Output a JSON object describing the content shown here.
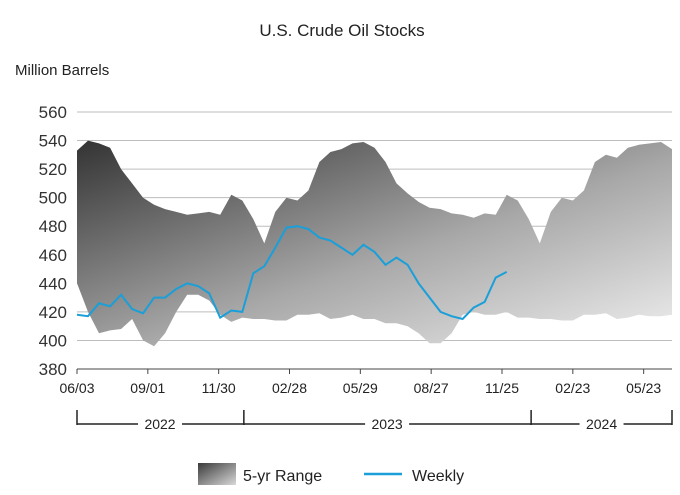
{
  "chart_data": {
    "type": "area",
    "title": "U.S. Crude Oil Stocks",
    "ylabel": "Million Barrels",
    "ylim": [
      380,
      560
    ],
    "yticks": [
      380,
      400,
      420,
      440,
      460,
      480,
      500,
      520,
      540,
      560
    ],
    "grid": true,
    "legend": "bottom",
    "x_start": "2022-06-03",
    "x_end": "2024-06-28",
    "xtick_labels": [
      {
        "label": "06/03",
        "date": "2022-06-03"
      },
      {
        "label": "09/01",
        "date": "2022-09-01"
      },
      {
        "label": "11/30",
        "date": "2022-11-30"
      },
      {
        "label": "02/28",
        "date": "2023-02-28"
      },
      {
        "label": "05/29",
        "date": "2023-05-29"
      },
      {
        "label": "08/27",
        "date": "2023-08-27"
      },
      {
        "label": "11/25",
        "date": "2023-11-25"
      },
      {
        "label": "02/23",
        "date": "2024-02-23"
      },
      {
        "label": "05/23",
        "date": "2024-05-23"
      }
    ],
    "year_labels": [
      {
        "label": "2022",
        "start": "2022-06-03",
        "end": "2022-12-31"
      },
      {
        "label": "2023",
        "start": "2023-01-01",
        "end": "2023-12-31"
      },
      {
        "label": "2024",
        "start": "2024-01-01",
        "end": "2024-06-28"
      }
    ],
    "series": [
      {
        "name": "5-yr Range",
        "kind": "range",
        "dates": [
          "2022-06-03",
          "2022-06-17",
          "2022-07-01",
          "2022-07-15",
          "2022-07-29",
          "2022-08-12",
          "2022-08-26",
          "2022-09-09",
          "2022-09-23",
          "2022-10-07",
          "2022-10-21",
          "2022-11-04",
          "2022-11-18",
          "2022-12-02",
          "2022-12-16",
          "2022-12-30",
          "2023-01-13",
          "2023-01-27",
          "2023-02-10",
          "2023-02-24",
          "2023-03-10",
          "2023-03-24",
          "2023-04-07",
          "2023-04-21",
          "2023-05-05",
          "2023-05-19",
          "2023-06-02",
          "2023-06-16",
          "2023-06-30",
          "2023-07-14",
          "2023-07-28",
          "2023-08-11",
          "2023-08-25",
          "2023-09-08",
          "2023-09-22",
          "2023-10-06",
          "2023-10-20",
          "2023-11-03",
          "2023-11-17",
          "2023-12-01",
          "2023-12-15",
          "2023-12-29",
          "2024-01-12",
          "2024-01-26",
          "2024-02-09",
          "2024-02-23",
          "2024-03-08",
          "2024-03-22",
          "2024-04-05",
          "2024-04-19",
          "2024-05-03",
          "2024-05-17",
          "2024-05-31",
          "2024-06-14",
          "2024-06-28"
        ],
        "high": [
          533,
          540,
          538,
          535,
          520,
          510,
          500,
          495,
          492,
          490,
          488,
          489,
          490,
          488,
          502,
          498,
          485,
          468,
          490,
          500,
          498,
          505,
          525,
          532,
          534,
          538,
          539,
          535,
          525,
          510,
          503,
          497,
          493,
          492,
          489,
          488,
          486,
          489,
          488,
          502,
          498,
          485,
          468,
          490,
          500,
          498,
          505,
          525,
          530,
          528,
          535,
          537,
          538,
          539,
          534
        ],
        "low": [
          440,
          420,
          405,
          407,
          408,
          415,
          400,
          396,
          405,
          420,
          432,
          432,
          428,
          418,
          413,
          416,
          415,
          415,
          414,
          414,
          418,
          418,
          419,
          415,
          416,
          418,
          415,
          415,
          412,
          412,
          410,
          405,
          398,
          398,
          405,
          418,
          420,
          418,
          418,
          420,
          416,
          416,
          415,
          415,
          414,
          414,
          418,
          418,
          419,
          415,
          416,
          418,
          417,
          417,
          418
        ]
      },
      {
        "name": "Weekly",
        "kind": "line",
        "color": "#1a9fd8",
        "dates": [
          "2022-06-03",
          "2022-06-17",
          "2022-07-01",
          "2022-07-15",
          "2022-07-29",
          "2022-08-12",
          "2022-08-26",
          "2022-09-09",
          "2022-09-23",
          "2022-10-07",
          "2022-10-21",
          "2022-11-04",
          "2022-11-18",
          "2022-12-02",
          "2022-12-16",
          "2022-12-30",
          "2023-01-13",
          "2023-01-27",
          "2023-02-10",
          "2023-02-24",
          "2023-03-10",
          "2023-03-24",
          "2023-04-07",
          "2023-04-21",
          "2023-05-05",
          "2023-05-19",
          "2023-06-02",
          "2023-06-16",
          "2023-06-30",
          "2023-07-14",
          "2023-07-28",
          "2023-08-11",
          "2023-08-25",
          "2023-09-08",
          "2023-09-22",
          "2023-10-06",
          "2023-10-20",
          "2023-11-03",
          "2023-11-17",
          "2023-12-01"
        ],
        "values": [
          418,
          417,
          426,
          424,
          432,
          422,
          419,
          430,
          430,
          436,
          440,
          438,
          433,
          416,
          421,
          420,
          447,
          452,
          465,
          479,
          480,
          478,
          472,
          470,
          465,
          460,
          467,
          462,
          453,
          458,
          453,
          440,
          430,
          420,
          417,
          415,
          423,
          427,
          444,
          448
        ]
      }
    ],
    "colors": {
      "band_dark": "#3a3a3a",
      "band_light": "#ececec",
      "weekly": "#1a9fd8",
      "grid": "#bdbdbd"
    }
  }
}
